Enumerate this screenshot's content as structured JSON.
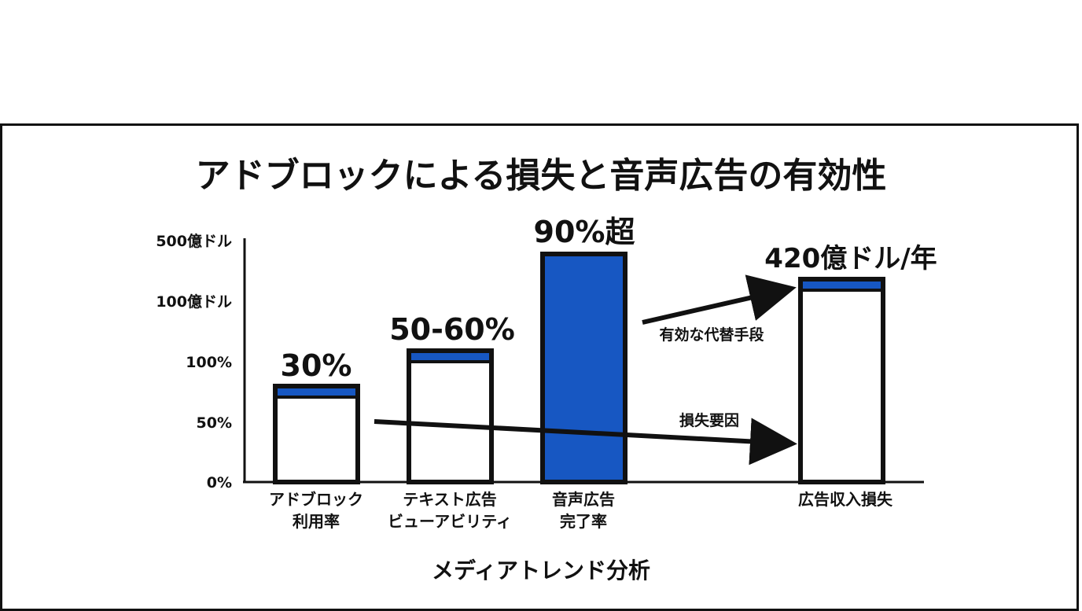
{
  "chart_data": {
    "type": "bar",
    "title": "アドブロックによる損失と音声広告の有効性",
    "xlabel": "メディアトレンド分析",
    "y_ticks": [
      "0%",
      "50%",
      "100%",
      "100億ドル",
      "500億ドル"
    ],
    "categories": [
      [
        "アドブロック",
        "利用率"
      ],
      [
        "テキスト広告",
        "ビューアビリティ"
      ],
      [
        "音声広告",
        "完了率"
      ],
      [
        "広告収入損失"
      ]
    ],
    "value_labels": [
      "30%",
      "50-60%",
      "90%超",
      "420億ドル/年"
    ],
    "annotations": {
      "upper_arrow": "有効な代替手段",
      "lower_arrow": "損失要因"
    },
    "colors": {
      "accent": "#1757c2",
      "ink": "#111111",
      "fill": "#ffffff"
    }
  }
}
